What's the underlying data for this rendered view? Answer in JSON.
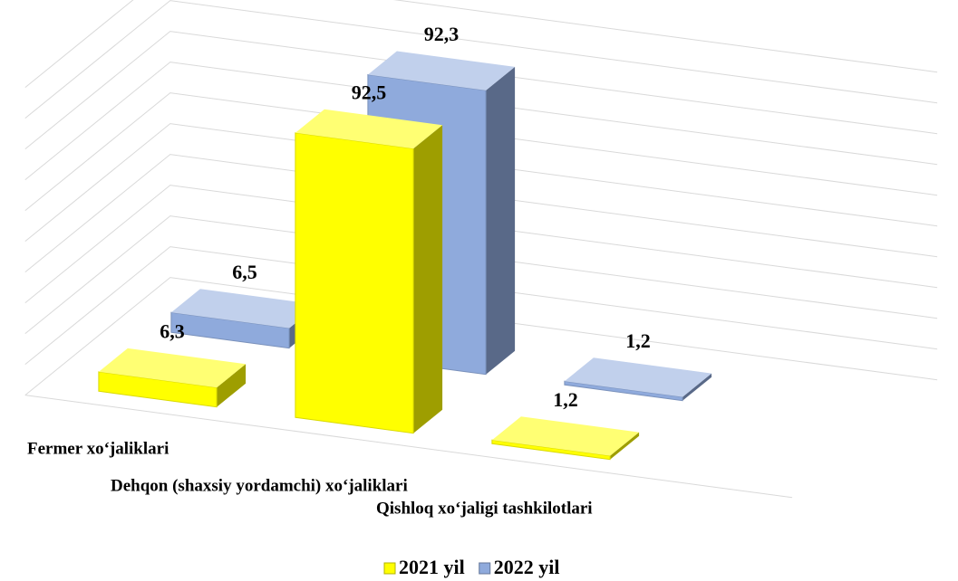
{
  "chart_data": {
    "type": "bar3d",
    "categories": [
      "Fermer xo‘jaliklari",
      "Dehqon (shaxsiy yordamchi) xo‘jaliklari",
      "Qishloq xo‘jaligi tashkilotlari"
    ],
    "series": [
      {
        "name": "2021 yil",
        "color": "#ffff00",
        "values": [
          6.3,
          92.5,
          1.2
        ],
        "value_labels": [
          "6,3",
          "92,5",
          "1,2"
        ]
      },
      {
        "name": "2022 yil",
        "color": "#8faadc",
        "values": [
          6.5,
          92.3,
          1.2
        ],
        "value_labels": [
          "6,5",
          "92,3",
          "1,2"
        ]
      }
    ],
    "ylim": [
      0,
      100
    ],
    "yticks": [
      0,
      10,
      20,
      30,
      40,
      50,
      60,
      70,
      80,
      90,
      100
    ],
    "grid": true,
    "legend": "bottom"
  }
}
